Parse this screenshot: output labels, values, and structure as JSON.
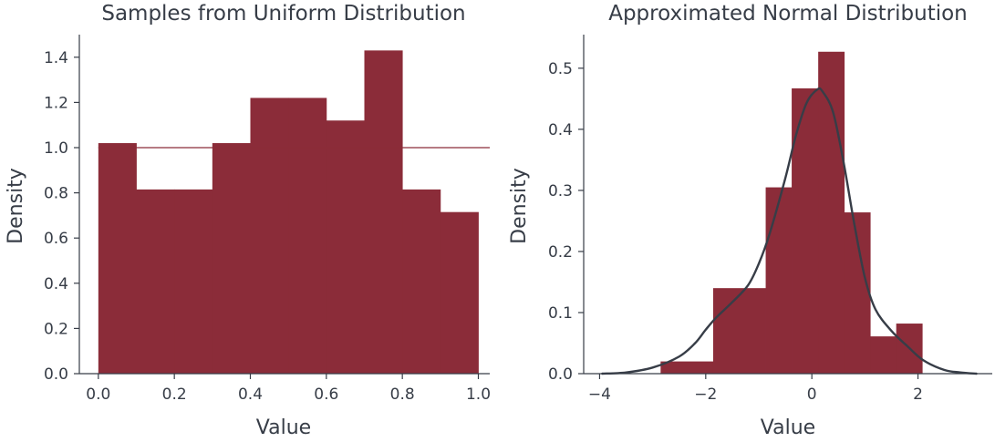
{
  "colors": {
    "bar": "#8b2c39",
    "ink": "#373d47",
    "background": "#ffffff"
  },
  "chart_data": [
    {
      "type": "bar",
      "title": "Samples from Uniform Distribution",
      "xlabel": "Value",
      "ylabel": "Density",
      "xlim": [
        -0.05,
        1.03
      ],
      "ylim": [
        0,
        1.5
      ],
      "xticks": [
        0.0,
        0.2,
        0.4,
        0.6,
        0.8,
        1.0
      ],
      "xtick_labels": [
        "0.0",
        "0.2",
        "0.4",
        "0.6",
        "0.8",
        "1.0"
      ],
      "yticks": [
        0.0,
        0.2,
        0.4,
        0.6,
        0.8,
        1.0,
        1.2,
        1.4
      ],
      "ytick_labels": [
        "0.0",
        "0.2",
        "0.4",
        "0.6",
        "0.8",
        "1.0",
        "1.2",
        "1.4"
      ],
      "bins": [
        {
          "x0": 0.0,
          "x1": 0.1,
          "value": 1.02
        },
        {
          "x0": 0.1,
          "x1": 0.2,
          "value": 0.815
        },
        {
          "x0": 0.2,
          "x1": 0.3,
          "value": 0.815
        },
        {
          "x0": 0.3,
          "x1": 0.4,
          "value": 1.02
        },
        {
          "x0": 0.4,
          "x1": 0.5,
          "value": 1.22
        },
        {
          "x0": 0.5,
          "x1": 0.6,
          "value": 1.22
        },
        {
          "x0": 0.6,
          "x1": 0.7,
          "value": 1.12
        },
        {
          "x0": 0.7,
          "x1": 0.8,
          "value": 1.43
        },
        {
          "x0": 0.8,
          "x1": 0.9,
          "value": 0.815
        },
        {
          "x0": 0.9,
          "x1": 1.0,
          "value": 0.715
        }
      ],
      "reference_line": {
        "y": 1.0,
        "x0": 0.0,
        "x1": 1.03
      },
      "grid": false,
      "legend": "none"
    },
    {
      "type": "bar",
      "title": "Approximated Normal Distribution",
      "xlabel": "Value",
      "ylabel": "Density",
      "xlim": [
        -4.3,
        3.4
      ],
      "ylim": [
        0,
        0.555
      ],
      "xticks": [
        -4,
        -2,
        0,
        2
      ],
      "xtick_labels": [
        "−4",
        "−2",
        "0",
        "2"
      ],
      "yticks": [
        0.0,
        0.1,
        0.2,
        0.3,
        0.4,
        0.5
      ],
      "ytick_labels": [
        "0.0",
        "0.1",
        "0.2",
        "0.3",
        "0.4",
        "0.5"
      ],
      "bins": [
        {
          "x0": -2.85,
          "x1": -1.86,
          "value": 0.02
        },
        {
          "x0": -1.86,
          "x1": -0.87,
          "value": 0.14
        },
        {
          "x0": -0.87,
          "x1": -0.38,
          "value": 0.305
        },
        {
          "x0": -0.38,
          "x1": 0.12,
          "value": 0.467
        },
        {
          "x0": 0.12,
          "x1": 0.61,
          "value": 0.527
        },
        {
          "x0": 0.61,
          "x1": 1.1,
          "value": 0.264
        },
        {
          "x0": 1.1,
          "x1": 1.59,
          "value": 0.061
        },
        {
          "x0": 1.59,
          "x1": 2.08,
          "value": 0.082
        }
      ],
      "kde_curve": {
        "x": [
          -3.95,
          -3.5,
          -3.0,
          -2.5,
          -2.2,
          -2.0,
          -1.8,
          -1.5,
          -1.2,
          -1.0,
          -0.8,
          -0.5,
          -0.3,
          -0.1,
          0.1,
          0.2,
          0.4,
          0.6,
          0.8,
          1.0,
          1.2,
          1.5,
          1.8,
          2.1,
          2.5,
          2.8,
          3.1
        ],
        "y": [
          0.0,
          0.002,
          0.01,
          0.028,
          0.05,
          0.072,
          0.092,
          0.117,
          0.145,
          0.18,
          0.228,
          0.32,
          0.39,
          0.443,
          0.465,
          0.462,
          0.428,
          0.345,
          0.245,
          0.157,
          0.105,
          0.07,
          0.045,
          0.022,
          0.006,
          0.002,
          0.0
        ]
      },
      "grid": false,
      "legend": "none"
    }
  ]
}
